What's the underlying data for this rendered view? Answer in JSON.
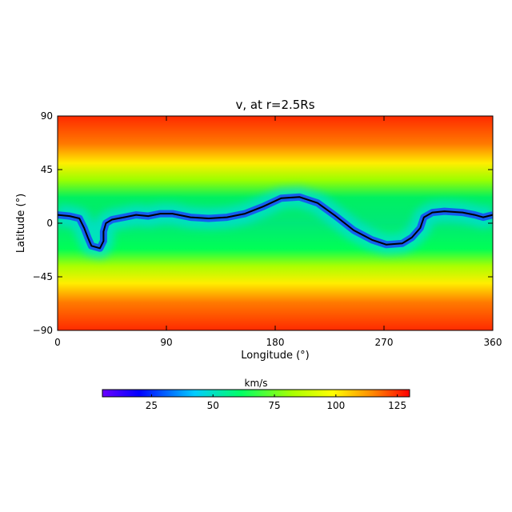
{
  "chart_data": {
    "type": "heatmap",
    "title": "v, at r=2.5Rs",
    "xlabel": "Longitude (°)",
    "ylabel": "Latitude (°)",
    "xlim": [
      0,
      360
    ],
    "ylim": [
      -90,
      90
    ],
    "x_ticks": [
      0,
      90,
      180,
      270,
      360
    ],
    "y_ticks": [
      -90,
      -45,
      0,
      45,
      90
    ],
    "grid": false,
    "colorbar": {
      "label": "km/s",
      "range": [
        5,
        130
      ],
      "ticks": [
        25,
        50,
        75,
        100,
        125
      ],
      "colormap": "rainbow"
    },
    "neutral_line": [
      [
        0,
        7
      ],
      [
        10,
        6
      ],
      [
        18,
        4
      ],
      [
        22,
        -4
      ],
      [
        25,
        -12
      ],
      [
        28,
        -19
      ],
      [
        35,
        -21
      ],
      [
        38,
        -15
      ],
      [
        38,
        -7
      ],
      [
        40,
        0
      ],
      [
        45,
        3
      ],
      [
        55,
        5
      ],
      [
        65,
        7
      ],
      [
        75,
        6
      ],
      [
        85,
        8
      ],
      [
        95,
        8
      ],
      [
        110,
        5
      ],
      [
        125,
        4
      ],
      [
        140,
        5
      ],
      [
        155,
        8
      ],
      [
        170,
        14
      ],
      [
        185,
        21
      ],
      [
        200,
        22
      ],
      [
        215,
        17
      ],
      [
        230,
        6
      ],
      [
        245,
        -6
      ],
      [
        260,
        -14
      ],
      [
        272,
        -18
      ],
      [
        285,
        -17
      ],
      [
        293,
        -12
      ],
      [
        300,
        -4
      ],
      [
        303,
        5
      ],
      [
        310,
        9
      ],
      [
        320,
        10
      ],
      [
        335,
        9
      ],
      [
        345,
        7
      ],
      [
        352,
        5
      ],
      [
        360,
        7
      ]
    ],
    "colors": {
      "line": "#000000",
      "colormap_stops": [
        "#6a00ff",
        "#0000ff",
        "#00ccff",
        "#00ff66",
        "#aaff00",
        "#ffff00",
        "#ff8800",
        "#ff0000"
      ]
    }
  }
}
